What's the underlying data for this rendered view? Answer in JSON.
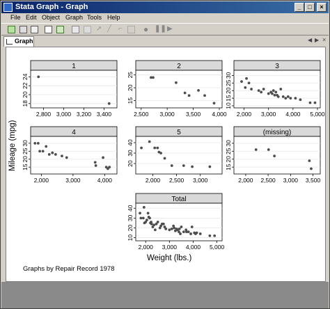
{
  "window": {
    "title": "Stata Graph - Graph"
  },
  "menu": {
    "items": [
      "File",
      "Edit",
      "Object",
      "Graph",
      "Tools",
      "Help"
    ]
  },
  "toolbar": {
    "icons": [
      "new-graph-icon",
      "open-icon",
      "save-icon",
      "print-icon",
      "copy-icon",
      "copy-graph-icon",
      "rename-icon",
      "pointer-icon",
      "add-line-icon",
      "add-text-icon",
      "add-marker-icon",
      "record-icon",
      "pause-icon",
      "play-icon"
    ]
  },
  "tab": {
    "label": "Graph"
  },
  "graph": {
    "ytitle": "Mileage (mpg)",
    "xtitle": "Weight (lbs.)",
    "note": "Graphs by Repair Record 1978"
  },
  "chart_data": [
    {
      "type": "scatter",
      "title": "1",
      "xlim": [
        2700,
        3500
      ],
      "ylim": [
        17.5,
        25
      ],
      "xticks": [
        "2,800",
        "3,000",
        "3,200",
        "3,400"
      ],
      "yticks": [
        "18",
        "20",
        "22",
        "24"
      ],
      "points": [
        [
          2750,
          24
        ],
        [
          3450,
          18
        ]
      ]
    },
    {
      "type": "scatter",
      "title": "2",
      "xlim": [
        2450,
        4000
      ],
      "ylim": [
        13,
        26
      ],
      "xticks": [
        "2,500",
        "3,000",
        "3,500",
        "4,000"
      ],
      "yticks": [
        "15",
        "20",
        "25"
      ],
      "points": [
        [
          2690,
          24
        ],
        [
          2730,
          24
        ],
        [
          3170,
          22
        ],
        [
          3340,
          18
        ],
        [
          3420,
          17
        ],
        [
          3600,
          19
        ],
        [
          3720,
          17
        ],
        [
          3900,
          14
        ]
      ]
    },
    {
      "type": "scatter",
      "title": "3",
      "xlim": [
        1700,
        5000
      ],
      "ylim": [
        10,
        32
      ],
      "xticks": [
        "2,000",
        "3,000",
        "4,000",
        "5,000"
      ],
      "yticks": [
        "10",
        "15",
        "20",
        "25",
        "30"
      ],
      "points": [
        [
          1900,
          26
        ],
        [
          2050,
          22
        ],
        [
          2100,
          28
        ],
        [
          2200,
          25
        ],
        [
          2300,
          21
        ],
        [
          2600,
          20
        ],
        [
          2700,
          19
        ],
        [
          2800,
          21
        ],
        [
          3000,
          18
        ],
        [
          3100,
          19
        ],
        [
          3150,
          18
        ],
        [
          3200,
          20
        ],
        [
          3250,
          17
        ],
        [
          3300,
          19
        ],
        [
          3350,
          17
        ],
        [
          3400,
          16
        ],
        [
          3500,
          21
        ],
        [
          3600,
          16
        ],
        [
          3700,
          15
        ],
        [
          3800,
          16
        ],
        [
          3900,
          15
        ],
        [
          4100,
          15
        ],
        [
          4300,
          14
        ],
        [
          4700,
          12
        ],
        [
          4900,
          12
        ]
      ]
    },
    {
      "type": "scatter",
      "title": "4",
      "xlim": [
        1750,
        4300
      ],
      "ylim": [
        12,
        33
      ],
      "xticks": [
        "2,000",
        "3,000",
        "4,000"
      ],
      "yticks": [
        "15",
        "20",
        "25",
        "30"
      ],
      "points": [
        [
          1800,
          30
        ],
        [
          1900,
          30
        ],
        [
          1950,
          25
        ],
        [
          2050,
          25
        ],
        [
          2150,
          28
        ],
        [
          2250,
          23
        ],
        [
          2350,
          24
        ],
        [
          2450,
          23
        ],
        [
          2650,
          22
        ],
        [
          2800,
          21
        ],
        [
          3700,
          18
        ],
        [
          3720,
          16
        ],
        [
          3950,
          21
        ],
        [
          4050,
          15
        ],
        [
          4100,
          14
        ],
        [
          4150,
          15
        ]
      ]
    },
    {
      "type": "scatter",
      "title": "5",
      "xlim": [
        1700,
        3400
      ],
      "ylim": [
        12,
        44
      ],
      "xticks": [
        "2,000",
        "2,500",
        "3,000"
      ],
      "yticks": [
        "20",
        "30",
        "40"
      ],
      "points": [
        [
          1760,
          35
        ],
        [
          1930,
          41
        ],
        [
          2040,
          35
        ],
        [
          2100,
          35
        ],
        [
          2130,
          31
        ],
        [
          2170,
          30
        ],
        [
          2250,
          25
        ],
        [
          2400,
          18
        ],
        [
          2650,
          18
        ],
        [
          2830,
          17
        ],
        [
          3200,
          17
        ]
      ]
    },
    {
      "type": "scatter",
      "title": "(missing)",
      "xlim": [
        1800,
        3600
      ],
      "ylim": [
        12,
        33
      ],
      "xticks": [
        "2,000",
        "2,500",
        "3,000",
        "3,500"
      ],
      "yticks": [
        "15",
        "20",
        "25",
        "30"
      ],
      "points": [
        [
          2230,
          26
        ],
        [
          2510,
          26
        ],
        [
          2640,
          22
        ],
        [
          3420,
          19
        ],
        [
          3460,
          14
        ]
      ]
    },
    {
      "type": "scatter",
      "title": "Total",
      "xlim": [
        1700,
        5100
      ],
      "ylim": [
        9,
        43
      ],
      "xticks": [
        "2,000",
        "3,000",
        "4,000",
        "5,000"
      ],
      "yticks": [
        "10",
        "20",
        "30",
        "40"
      ],
      "points": [
        [
          1760,
          35
        ],
        [
          1800,
          30
        ],
        [
          1900,
          30
        ],
        [
          1930,
          41
        ],
        [
          1950,
          25
        ],
        [
          2000,
          26
        ],
        [
          2050,
          28
        ],
        [
          2100,
          35
        ],
        [
          2130,
          31
        ],
        [
          2170,
          30
        ],
        [
          2200,
          25
        ],
        [
          2230,
          26
        ],
        [
          2250,
          24
        ],
        [
          2300,
          21
        ],
        [
          2350,
          23
        ],
        [
          2400,
          18
        ],
        [
          2450,
          24
        ],
        [
          2510,
          26
        ],
        [
          2600,
          20
        ],
        [
          2640,
          22
        ],
        [
          2690,
          24
        ],
        [
          2750,
          24
        ],
        [
          2800,
          21
        ],
        [
          2850,
          19
        ],
        [
          3000,
          18
        ],
        [
          3100,
          19
        ],
        [
          3170,
          22
        ],
        [
          3200,
          20
        ],
        [
          3250,
          17
        ],
        [
          3300,
          19
        ],
        [
          3340,
          18
        ],
        [
          3400,
          16
        ],
        [
          3420,
          19
        ],
        [
          3460,
          14
        ],
        [
          3500,
          21
        ],
        [
          3600,
          16
        ],
        [
          3700,
          18
        ],
        [
          3720,
          16
        ],
        [
          3800,
          16
        ],
        [
          3900,
          14
        ],
        [
          3950,
          21
        ],
        [
          4050,
          15
        ],
        [
          4100,
          14
        ],
        [
          4150,
          15
        ],
        [
          4300,
          14
        ],
        [
          4700,
          12
        ],
        [
          4900,
          12
        ]
      ]
    }
  ]
}
